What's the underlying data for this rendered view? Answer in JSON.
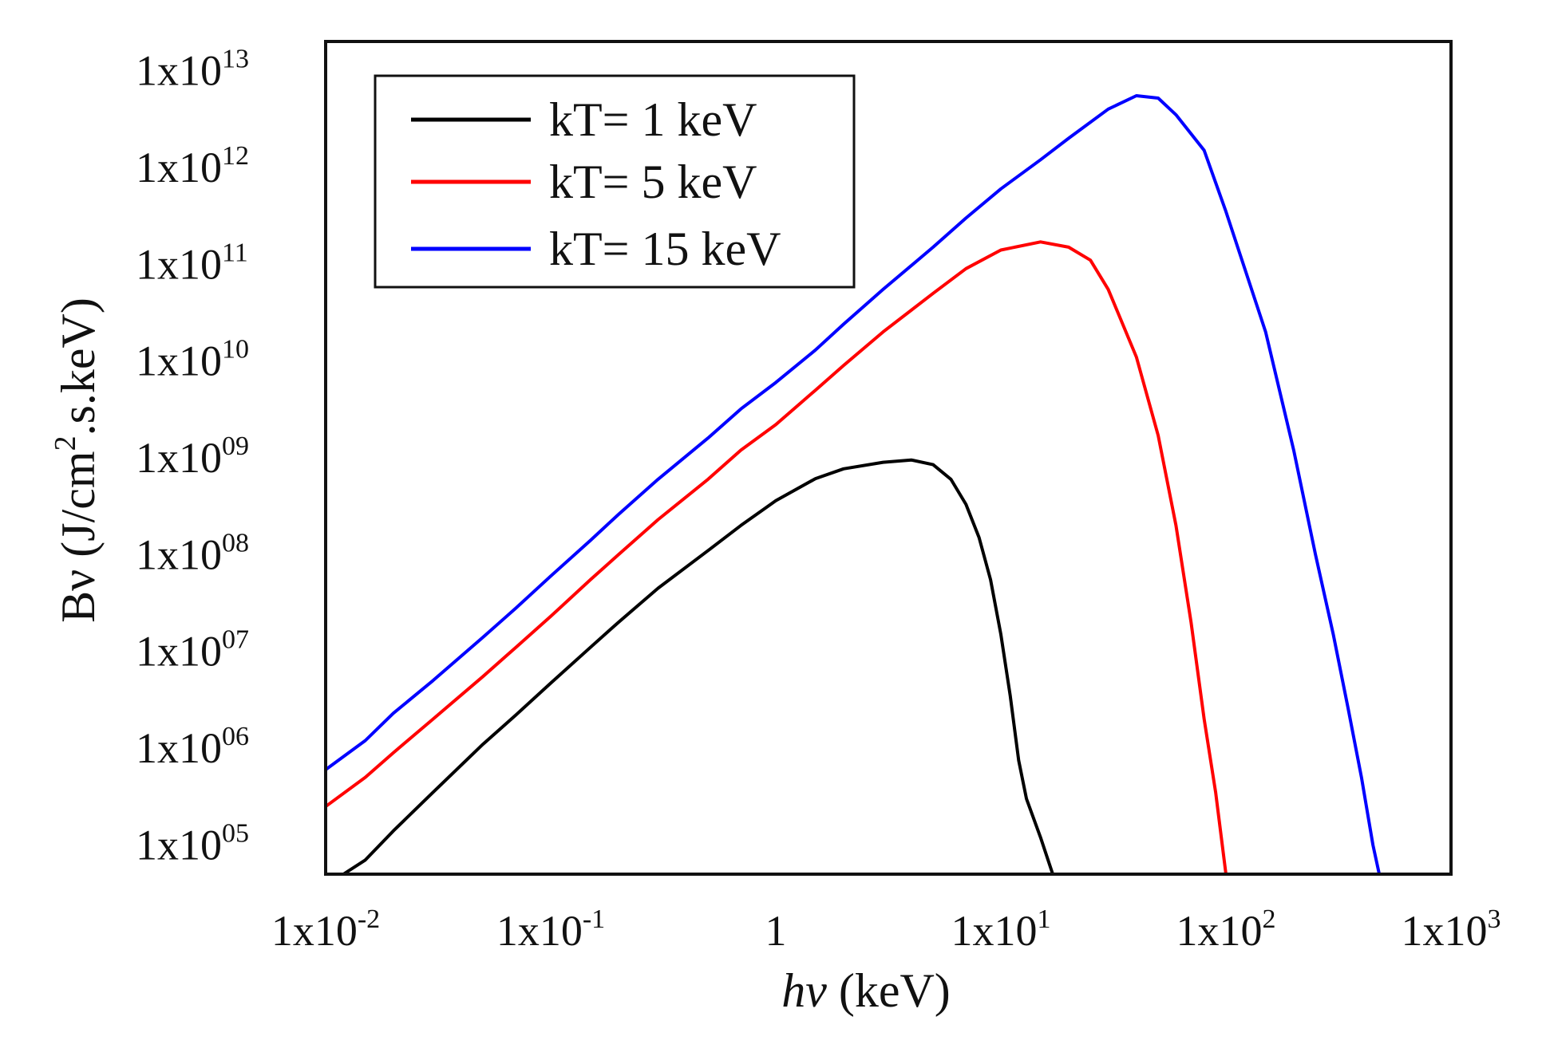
{
  "chart_data": {
    "type": "line",
    "title": "",
    "xscale": "log",
    "yscale": "log",
    "xlim": [
      0.01,
      1000
    ],
    "ylim": [
      50000,
      20000000000000
    ],
    "xlabel": {
      "italic": "hν",
      "rest": " (keV)"
    },
    "ylabel": {
      "prefix": "Bν (J/cm",
      "sup": "2",
      "suffix": ".s.keV)"
    },
    "x_ticks": [
      {
        "value": 0.01,
        "base": "1x10",
        "sup": "-2"
      },
      {
        "value": 0.1,
        "base": "1x10",
        "sup": "-1"
      },
      {
        "value": 1,
        "base": "1",
        "sup": ""
      },
      {
        "value": 10,
        "base": "1x10",
        "sup": "1"
      },
      {
        "value": 100,
        "base": "1x10",
        "sup": "2"
      },
      {
        "value": 1000,
        "base": "1x10",
        "sup": "3"
      }
    ],
    "y_ticks": [
      {
        "value": 100000,
        "base": "1x10",
        "sup": "05"
      },
      {
        "value": 1000000,
        "base": "1x10",
        "sup": "06"
      },
      {
        "value": 10000000,
        "base": "1x10",
        "sup": "07"
      },
      {
        "value": 100000000,
        "base": "1x10",
        "sup": "08"
      },
      {
        "value": 1000000000,
        "base": "1x10",
        "sup": "09"
      },
      {
        "value": 10000000000,
        "base": "1x10",
        "sup": "10"
      },
      {
        "value": 100000000000,
        "base": "1x10",
        "sup": "11"
      },
      {
        "value": 1000000000000,
        "base": "1x10",
        "sup": "12"
      },
      {
        "value": 10000000000000,
        "base": "1x10",
        "sup": "13"
      }
    ],
    "legend_position": "top-left",
    "series": [
      {
        "name": "kT= 1 keV",
        "color": "#000000",
        "x": [
          0.012,
          0.015,
          0.02,
          0.03,
          0.05,
          0.07,
          0.1,
          0.15,
          0.2,
          0.3,
          0.5,
          0.7,
          1,
          1.5,
          2,
          3,
          4,
          5,
          6,
          7,
          8,
          9,
          10,
          11,
          12,
          13,
          15,
          17
        ],
        "y": [
          50000,
          70000,
          140000,
          350000,
          1100000,
          2200000,
          4700000,
          11000000,
          20000000,
          45000000,
          110000000,
          200000000,
          360000000,
          610000000,
          770000000,
          900000000,
          950000000,
          850000000,
          600000000,
          330000000,
          150000000,
          55000000,
          15000000,
          3500000,
          750000,
          300000,
          120000,
          50000
        ]
      },
      {
        "name": "kT= 5 keV",
        "color": "#ff0000",
        "x": [
          0.01,
          0.015,
          0.02,
          0.03,
          0.05,
          0.07,
          0.1,
          0.15,
          0.2,
          0.3,
          0.5,
          0.7,
          1,
          1.5,
          2,
          3,
          5,
          7,
          10,
          15,
          20,
          25,
          30,
          40,
          50,
          60,
          70,
          80,
          90,
          100
        ],
        "y": [
          250000,
          500000,
          900000,
          2000000,
          5500000,
          11000000,
          23000000,
          55000000,
          100000000,
          230000000,
          600000000,
          1200000000,
          2200000000,
          5000000000,
          9000000000,
          20000000000,
          50000000000,
          90000000000,
          140000000000,
          170000000000,
          150000000000,
          110000000000,
          55000000000,
          11000000000,
          1700000000,
          200000000,
          20000000,
          2000000,
          350000,
          50000
        ]
      },
      {
        "name": "kT= 15 keV",
        "color": "#0000ff",
        "x": [
          0.01,
          0.015,
          0.02,
          0.03,
          0.05,
          0.07,
          0.1,
          0.15,
          0.2,
          0.3,
          0.5,
          0.7,
          1,
          1.5,
          2,
          3,
          5,
          7,
          10,
          15,
          20,
          30,
          40,
          50,
          60,
          80,
          100,
          150,
          200,
          250,
          300,
          350,
          400,
          450,
          480
        ],
        "y": [
          600000,
          1200000,
          2300000,
          5000000,
          14000000,
          28000000,
          60000000,
          140000000,
          260000000,
          600000000,
          1600000000,
          3200000000,
          6000000000,
          13000000000,
          24000000000,
          55000000000,
          150000000000,
          300000000000,
          600000000000,
          1200000000000,
          2000000000000,
          4000000000000,
          5500000000000,
          5200000000000,
          3500000000000,
          1500000000000,
          350000000000,
          20000000000,
          1200000000,
          100000000,
          15000000,
          2500000,
          500000,
          100000,
          50000
        ]
      }
    ]
  }
}
